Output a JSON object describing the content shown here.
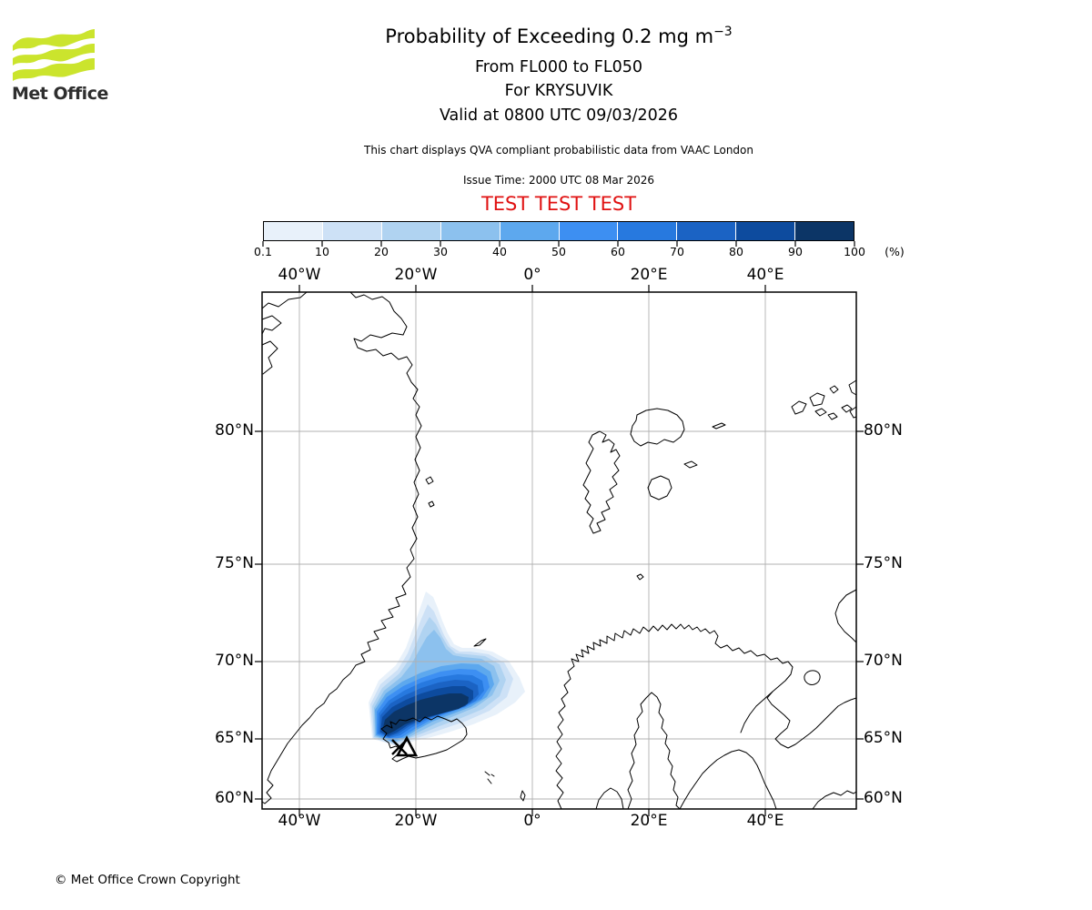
{
  "logo": {
    "brand": "Met Office",
    "wave_color": "#cbe42d"
  },
  "header": {
    "title_prefix": "Probability of Exceeding 0.2 mg m",
    "title_exponent": "−3",
    "subtitle_flight_levels": "From FL000 to FL050",
    "subtitle_volcano": "For KRYSUVIK",
    "subtitle_valid": "Valid at 0800 UTC 09/03/2026",
    "note": "This chart displays QVA compliant probabilistic data from VAAC London",
    "issue_time": "Issue Time: 2000 UTC 08 Mar 2026",
    "test_banner": "TEST TEST TEST",
    "test_banner_color": "#e01212"
  },
  "colorbar": {
    "tick_labels": [
      "0.1",
      "10",
      "20",
      "30",
      "40",
      "50",
      "60",
      "70",
      "80",
      "90",
      "100"
    ],
    "unit_label": "(%)",
    "colors": [
      "#e8f1fa",
      "#cde1f6",
      "#b0d3f1",
      "#8cc1ee",
      "#5da8ee",
      "#3d8ff2",
      "#2779df",
      "#1b63c4",
      "#0d4b9e",
      "#0c3566"
    ]
  },
  "map": {
    "lon_labels": [
      "40°W",
      "20°W",
      "0°",
      "20°E",
      "40°E"
    ],
    "lat_labels": [
      "80°N",
      "75°N",
      "70°N",
      "65°N",
      "60°N"
    ],
    "marker": {
      "volcano": "KRYSUVIK",
      "symbol": "triangle with X"
    }
  },
  "footer": {
    "copyright": "© Met Office Crown Copyright"
  }
}
